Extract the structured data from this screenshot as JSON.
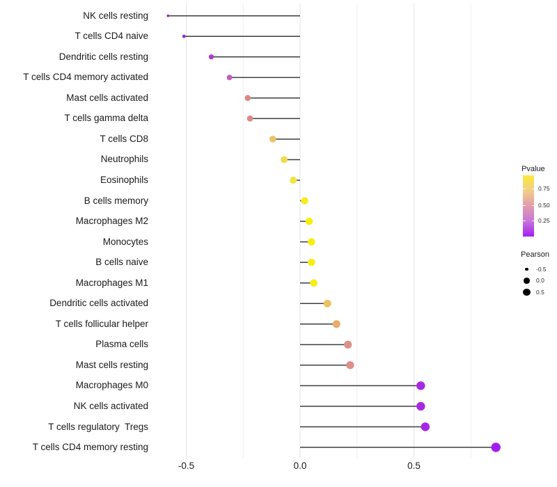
{
  "chart_data": {
    "type": "lollipop",
    "title": "",
    "xlabel": "",
    "ylabel": "",
    "x_ticks": [
      "-0.5",
      "0.0",
      "0.5"
    ],
    "x_tick_values": [
      -0.5,
      0.0,
      0.5
    ],
    "grid_values": [
      -0.5,
      -0.25,
      0.0,
      0.25,
      0.5,
      0.75
    ],
    "xlim": [
      -0.66,
      0.93
    ],
    "grid": "vertical-only",
    "legend_position": "right",
    "points": [
      {
        "label": "NK cells resting",
        "pearson": -0.58,
        "color": "#8A2BBE"
      },
      {
        "label": "T cells CD4 naive",
        "pearson": -0.51,
        "color": "#9431C9"
      },
      {
        "label": "Dendritic cells resting",
        "pearson": -0.39,
        "color": "#A840C7"
      },
      {
        "label": "T cells CD4 memory activated",
        "pearson": -0.31,
        "color": "#C161BD"
      },
      {
        "label": "Mast cells activated",
        "pearson": -0.23,
        "color": "#D98888"
      },
      {
        "label": "T cells gamma delta",
        "pearson": -0.22,
        "color": "#D98A8A"
      },
      {
        "label": "T cells CD8",
        "pearson": -0.12,
        "color": "#EDC266"
      },
      {
        "label": "Neutrophils",
        "pearson": -0.07,
        "color": "#F1DA4D"
      },
      {
        "label": "Eosinophils",
        "pearson": -0.03,
        "color": "#F3E43C"
      },
      {
        "label": "B cells memory",
        "pearson": 0.02,
        "color": "#F6EC20"
      },
      {
        "label": "Macrophages M2",
        "pearson": 0.04,
        "color": "#F7EF0A"
      },
      {
        "label": "Monocytes",
        "pearson": 0.05,
        "color": "#F7EF0A"
      },
      {
        "label": "B cells naive",
        "pearson": 0.05,
        "color": "#F7EE12"
      },
      {
        "label": "Macrophages M1",
        "pearson": 0.06,
        "color": "#F7EE12"
      },
      {
        "label": "Dendritic cells activated",
        "pearson": 0.12,
        "color": "#EBC25E"
      },
      {
        "label": "T cells follicular helper",
        "pearson": 0.16,
        "color": "#E9AC6C"
      },
      {
        "label": "Plasma cells",
        "pearson": 0.21,
        "color": "#DE8F89"
      },
      {
        "label": "Mast cells resting",
        "pearson": 0.22,
        "color": "#DE8F89"
      },
      {
        "label": "Macrophages M0",
        "pearson": 0.53,
        "color": "#A829E4"
      },
      {
        "label": "NK cells activated",
        "pearson": 0.53,
        "color": "#A829E4"
      },
      {
        "label": "T cells regulatory  Tregs",
        "pearson": 0.55,
        "color": "#A627E6"
      },
      {
        "label": "T cells CD4 memory resting",
        "pearson": 0.86,
        "color": "#A01FF0"
      }
    ]
  },
  "legend_pvalue": {
    "title": "Pvalue",
    "ticks": [
      "0.75",
      "0.50",
      "0.25"
    ],
    "gradient_bottom_to_top": [
      "#A41EF5",
      "#C978D6",
      "#E3A0A8",
      "#F2CC8A",
      "#FBE93D"
    ]
  },
  "legend_pearson": {
    "title": "Pearson",
    "entries": [
      {
        "label": "-0.5",
        "value": -0.5
      },
      {
        "label": "0.0",
        "value": 0.0
      },
      {
        "label": "0.5",
        "value": 0.5
      }
    ]
  }
}
